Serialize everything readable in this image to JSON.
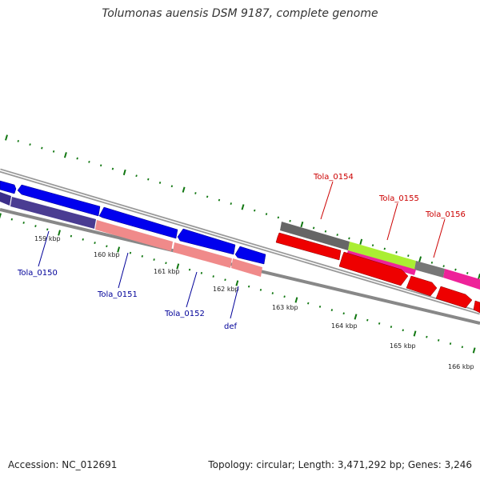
{
  "title": "Tolumonas auensis DSM 9187, complete genome",
  "footer": {
    "accession": "Accession: NC_012691",
    "topology": "Topology: circular; Length: 3,471,292 bp; Genes: 3,246"
  },
  "colors": {
    "forward_gene": "#0000ee",
    "forward_cds": "#3c2f8a",
    "forward_cds_light": "#f08a8a",
    "reverse_cds_gray": "#666666",
    "reverse_cds_green": "#aaee33",
    "reverse_cds_magenta": "#ee2299",
    "reverse_gene": "#ee0000",
    "tick": "#117711",
    "label_forward": "#000099",
    "label_reverse": "#cc0000"
  },
  "scale": {
    "tick_labels": [
      "159 kbp",
      "160 kbp",
      "161 kbp",
      "162 kbp",
      "163 kbp",
      "164 kbp",
      "165 kbp",
      "166 kbp"
    ]
  },
  "gene_labels": [
    {
      "text": "Tola_0150",
      "strand": "forward"
    },
    {
      "text": "Tola_0151",
      "strand": "forward"
    },
    {
      "text": "Tola_0152",
      "strand": "forward"
    },
    {
      "text": "def",
      "strand": "forward"
    },
    {
      "text": "Tola_0154",
      "strand": "reverse"
    },
    {
      "text": "Tola_0155",
      "strand": "reverse"
    },
    {
      "text": "Tola_0156",
      "strand": "reverse"
    }
  ]
}
